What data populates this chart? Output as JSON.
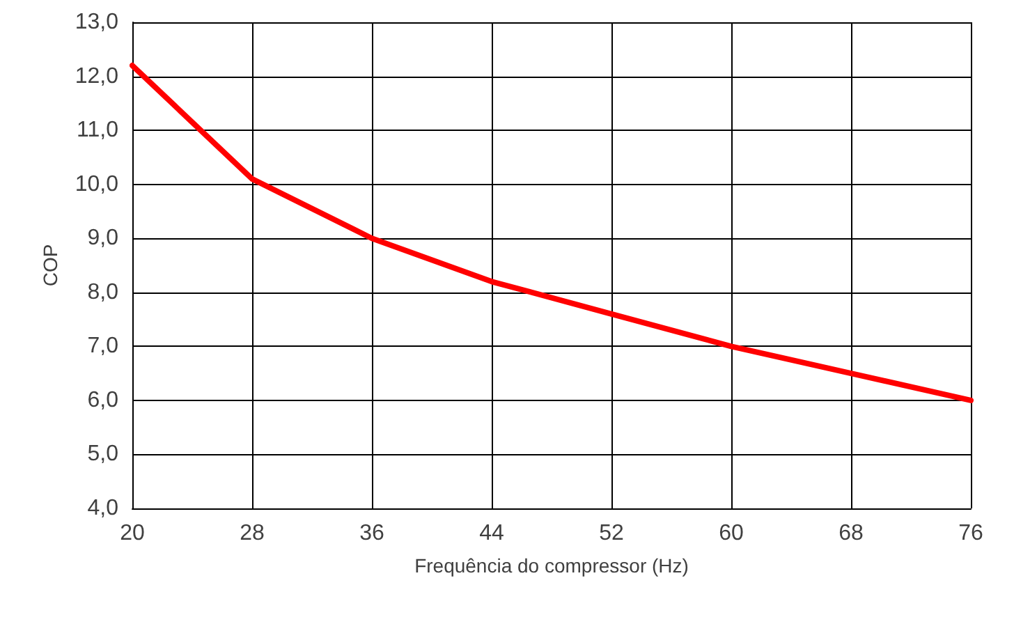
{
  "chart_data": {
    "type": "line",
    "xlabel": "Frequência do compressor (Hz)",
    "ylabel": "COP",
    "x": [
      20,
      28,
      36,
      44,
      52,
      60,
      68,
      76
    ],
    "series": [
      {
        "color": "#ff0000",
        "values": [
          12.2,
          10.1,
          9.0,
          8.2,
          7.6,
          7.0,
          6.5,
          6.0
        ]
      }
    ],
    "xlim": [
      20,
      76
    ],
    "xticks": [
      20,
      28,
      36,
      44,
      52,
      60,
      68,
      76
    ],
    "ylim": [
      4,
      13
    ],
    "yticks": [
      {
        "value": 4,
        "label": "4,0"
      },
      {
        "value": 5,
        "label": "5,0"
      },
      {
        "value": 6,
        "label": "6,0"
      },
      {
        "value": 7,
        "label": "7,0"
      },
      {
        "value": 8,
        "label": "8,0"
      },
      {
        "value": 9,
        "label": "9,0"
      },
      {
        "value": 10,
        "label": "10,0"
      },
      {
        "value": 11,
        "label": "11,0"
      },
      {
        "value": 12,
        "label": "12,0"
      },
      {
        "value": 13,
        "label": "13,0"
      }
    ],
    "grid": true,
    "marker": "none",
    "line_style": "solid"
  }
}
